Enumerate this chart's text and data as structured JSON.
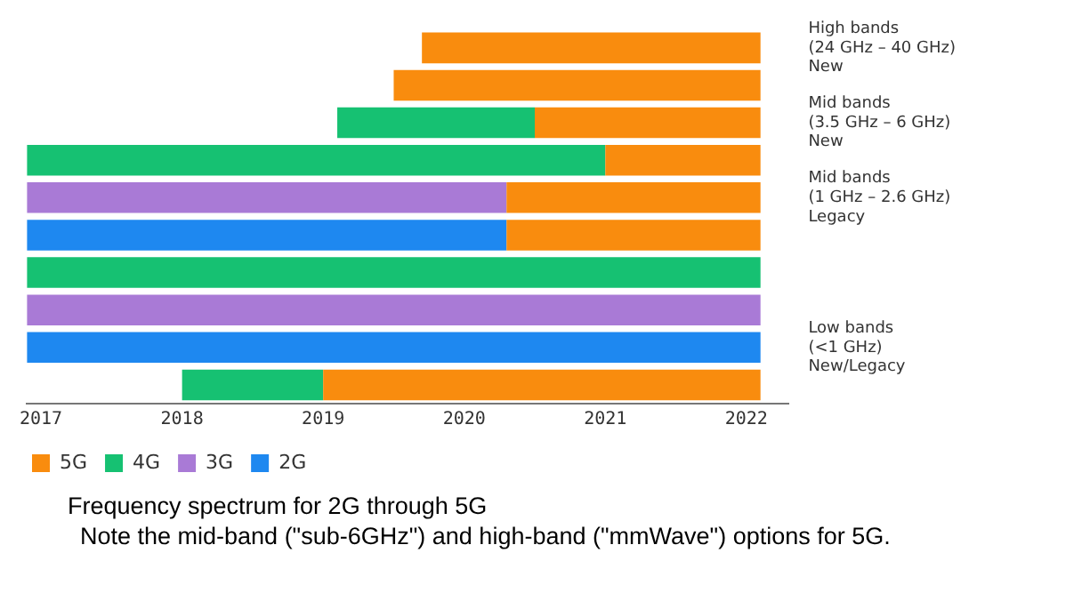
{
  "chart_data": {
    "type": "bar",
    "orientation": "horizontal",
    "categories": [
      "High bands\n(24 GHz – 40 GHz)\nNew",
      null,
      "Mid bands\n(3.5 GHz – 6 GHz)\nNew",
      null,
      "Mid bands\n(1 GHz – 2.6 GHz)\nLegacy",
      null,
      null,
      null,
      "Low bands\n(<1 GHz)\nNew/Legacy",
      null
    ],
    "series": [
      {
        "name": "5G",
        "color": "#f98c0e",
        "values": [
          2.4,
          2.6,
          1.6,
          1.1,
          1.8,
          1.8,
          null,
          null,
          null,
          3.1
        ],
        "base": [
          2019.7,
          2019.5,
          2020.5,
          2021,
          2020.3,
          2020.3,
          null,
          null,
          null,
          2019
        ]
      },
      {
        "name": "4G",
        "color": "#16c172",
        "values": [
          null,
          null,
          1.4,
          4.1,
          null,
          null,
          5.2,
          null,
          null,
          1.0
        ],
        "base": [
          null,
          null,
          2019.1,
          2016.9,
          null,
          null,
          2016.9,
          null,
          null,
          2018.0
        ]
      },
      {
        "name": "3G",
        "color": "#a97ad6",
        "values": [
          null,
          null,
          null,
          null,
          3.4,
          null,
          null,
          5.2,
          null,
          null
        ],
        "base": [
          null,
          null,
          null,
          null,
          2016.9,
          null,
          null,
          2016.9,
          null,
          null
        ]
      },
      {
        "name": "2G",
        "color": "#1e88f0",
        "values": [
          null,
          null,
          null,
          null,
          null,
          3.4,
          null,
          null,
          5.2,
          null
        ],
        "base": [
          null,
          null,
          null,
          null,
          null,
          2016.9,
          null,
          null,
          2016.9,
          null
        ]
      }
    ],
    "xlim": [
      2016.9,
      2022.3
    ],
    "xticks": [
      2017,
      2018,
      2019,
      2020,
      2021,
      2022
    ],
    "grid": false,
    "legend": "bottom left",
    "annotations": [
      "Frequency spectrum for 2G through 5G",
      "Note the mid-band (\"sub-6GHz\") and high-band (\"mmWave\") options for 5G."
    ]
  }
}
